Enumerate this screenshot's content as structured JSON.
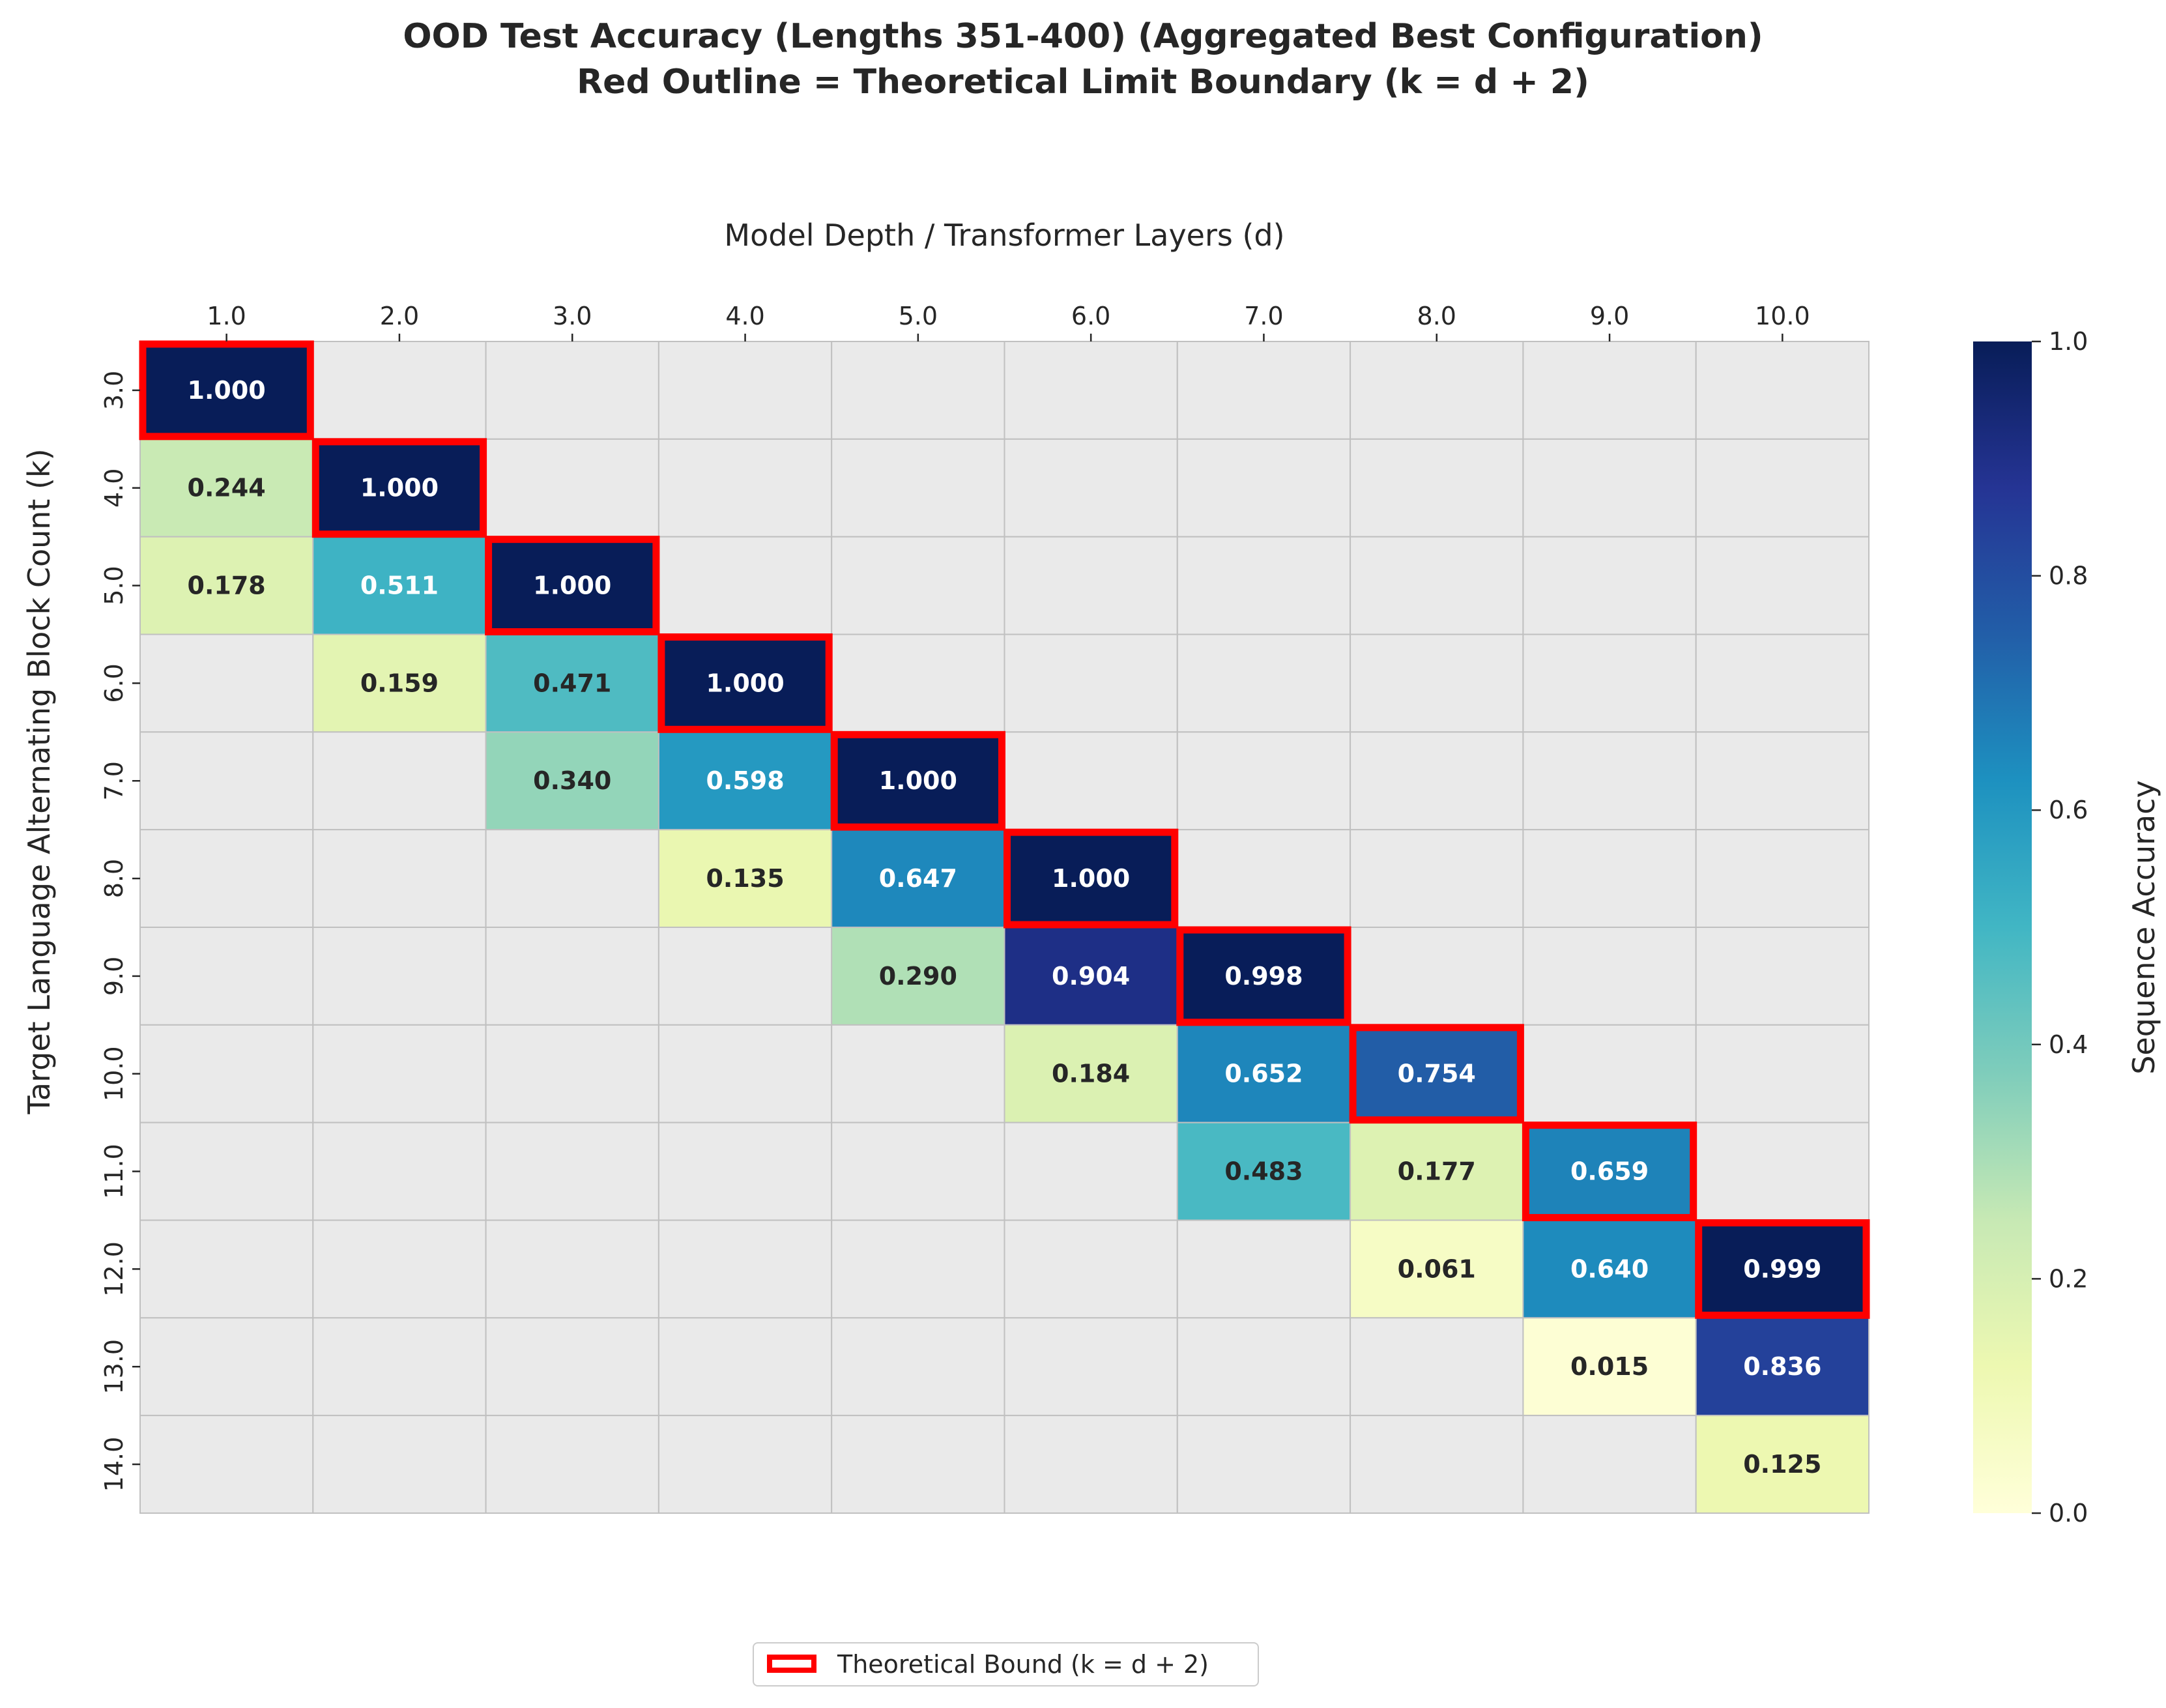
{
  "title_lines": [
    "OOD Test Accuracy (Lengths 351-400) (Aggregated Best Configuration)",
    "Red Outline = Theoretical Limit Boundary (k = d + 2)"
  ],
  "chart_data": {
    "type": "heatmap",
    "title": "OOD Test Accuracy (Lengths 351-400) (Aggregated Best Configuration)",
    "subtitle": "Red Outline = Theoretical Limit Boundary (k = d + 2)",
    "xlabel": "Model Depth / Transformer Layers (d)",
    "ylabel": "Target Language Alternating Block Count (k)",
    "x_ticks": [
      "1.0",
      "2.0",
      "3.0",
      "4.0",
      "5.0",
      "6.0",
      "7.0",
      "8.0",
      "9.0",
      "10.0"
    ],
    "y_ticks": [
      "3.0",
      "4.0",
      "5.0",
      "6.0",
      "7.0",
      "8.0",
      "9.0",
      "10.0",
      "11.0",
      "12.0",
      "13.0",
      "14.0"
    ],
    "x_axis_position": "top",
    "colormap": "YlGnBu",
    "missing_color": "#eaeaea",
    "grid": true,
    "values": [
      [
        1.0,
        null,
        null,
        null,
        null,
        null,
        null,
        null,
        null,
        null
      ],
      [
        0.244,
        1.0,
        null,
        null,
        null,
        null,
        null,
        null,
        null,
        null
      ],
      [
        0.178,
        0.511,
        1.0,
        null,
        null,
        null,
        null,
        null,
        null,
        null
      ],
      [
        null,
        0.159,
        0.471,
        1.0,
        null,
        null,
        null,
        null,
        null,
        null
      ],
      [
        null,
        null,
        0.34,
        0.598,
        1.0,
        null,
        null,
        null,
        null,
        null
      ],
      [
        null,
        null,
        null,
        0.135,
        0.647,
        1.0,
        null,
        null,
        null,
        null
      ],
      [
        null,
        null,
        null,
        null,
        0.29,
        0.904,
        0.998,
        null,
        null,
        null
      ],
      [
        null,
        null,
        null,
        null,
        null,
        0.184,
        0.652,
        0.754,
        null,
        null
      ],
      [
        null,
        null,
        null,
        null,
        null,
        null,
        0.483,
        0.177,
        0.659,
        null
      ],
      [
        null,
        null,
        null,
        null,
        null,
        null,
        null,
        0.061,
        0.64,
        0.999
      ],
      [
        null,
        null,
        null,
        null,
        null,
        null,
        null,
        null,
        0.015,
        0.836
      ],
      [
        null,
        null,
        null,
        null,
        null,
        null,
        null,
        null,
        null,
        0.125
      ]
    ],
    "colorbar": {
      "label": "Sequence Accuracy",
      "range": [
        0.0,
        1.0
      ],
      "ticks": [
        "0.0",
        "0.2",
        "0.4",
        "0.6",
        "0.8",
        "1.0"
      ]
    },
    "boundary": {
      "rule": "k = d + 2",
      "color": "#ff0000"
    },
    "legend": {
      "label": "Theoretical Bound (k = d + 2)",
      "position": "bottom-center"
    }
  }
}
